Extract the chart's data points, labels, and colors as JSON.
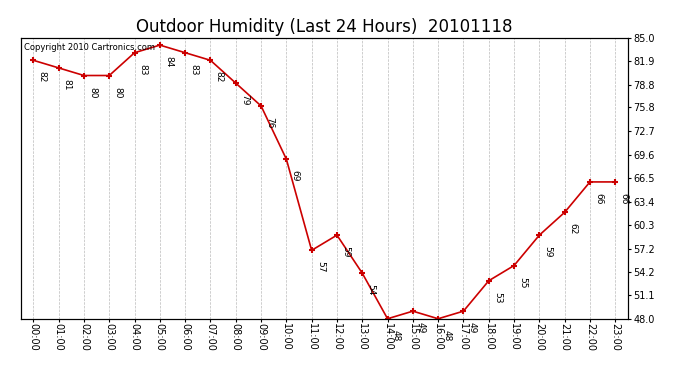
{
  "title": "Outdoor Humidity (Last 24 Hours)  20101118",
  "copyright": "Copyright 2010 Cartronics.com",
  "hours": [
    "00:00",
    "01:00",
    "02:00",
    "03:00",
    "04:00",
    "05:00",
    "06:00",
    "07:00",
    "08:00",
    "09:00",
    "10:00",
    "11:00",
    "12:00",
    "13:00",
    "14:00",
    "15:00",
    "16:00",
    "17:00",
    "18:00",
    "19:00",
    "20:00",
    "21:00",
    "22:00",
    "23:00"
  ],
  "values": [
    82,
    81,
    80,
    80,
    83,
    84,
    83,
    82,
    79,
    76,
    69,
    57,
    59,
    54,
    48,
    49,
    48,
    49,
    53,
    55,
    59,
    62,
    66,
    66
  ],
  "line_color": "#cc0000",
  "bg_color": "#ffffff",
  "grid_color": "#bbbbbb",
  "ylim": [
    48.0,
    85.0
  ],
  "yticks_right": [
    85.0,
    81.9,
    78.8,
    75.8,
    72.7,
    69.6,
    66.5,
    63.4,
    60.3,
    57.2,
    54.2,
    51.1,
    48.0
  ],
  "title_fontsize": 12,
  "label_fontsize": 7,
  "annotation_fontsize": 6.5,
  "copyright_fontsize": 6
}
